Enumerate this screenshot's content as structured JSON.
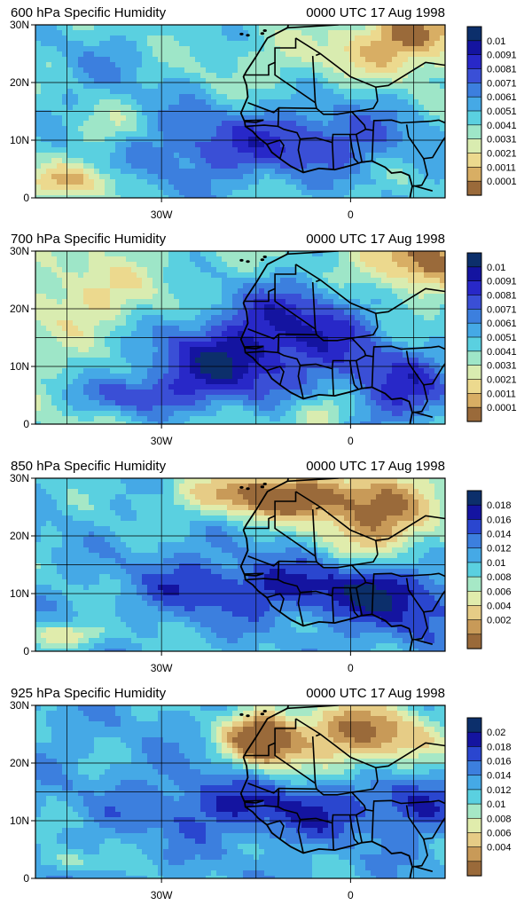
{
  "panels": [
    {
      "title": "600 hPa Specific Humidity",
      "time_label": "0000 UTC 17 Aug 1998",
      "y_tick_labels": [
        "30N",
        "20N",
        "10N",
        "0"
      ],
      "x_tick_labels": [
        "30W",
        "0"
      ],
      "colorbar_labels": [
        "0.01",
        "0.0091",
        "0.0081",
        "0.0071",
        "0.0061",
        "0.0051",
        "0.0041",
        "0.0031",
        "0.0021",
        "0.0011",
        "0.0001"
      ],
      "colorbar_colors": [
        "#0c2f6b",
        "#1414a0",
        "#2828c8",
        "#3a4fd6",
        "#3c7fde",
        "#45a9e6",
        "#5ad0e0",
        "#9ee6c8",
        "#d9ecb0",
        "#ecd98e",
        "#d8ae64",
        "#9a6a3a"
      ],
      "field": "humid-mid"
    },
    {
      "title": "700 hPa Specific Humidity",
      "time_label": "0000 UTC 17 Aug 1998",
      "y_tick_labels": [
        "30N",
        "20N",
        "10N",
        "0"
      ],
      "x_tick_labels": [
        "30W",
        "0"
      ],
      "colorbar_labels": [
        "0.01",
        "0.0091",
        "0.0081",
        "0.0071",
        "0.0061",
        "0.0051",
        "0.0041",
        "0.0031",
        "0.0021",
        "0.0011",
        "0.0001"
      ],
      "colorbar_colors": [
        "#0c2f6b",
        "#1414a0",
        "#2828c8",
        "#3a4fd6",
        "#3c7fde",
        "#45a9e6",
        "#5ad0e0",
        "#9ee6c8",
        "#d9ecb0",
        "#ecd98e",
        "#d8ae64",
        "#9a6a3a"
      ],
      "field": "humid-high"
    },
    {
      "title": "850 hPa Specific Humidity",
      "time_label": "0000 UTC 17 Aug 1998",
      "y_tick_labels": [
        "30N",
        "20N",
        "10N",
        "0"
      ],
      "x_tick_labels": [
        "30W",
        "0"
      ],
      "colorbar_labels": [
        "0.018",
        "0.016",
        "0.014",
        "0.012",
        "0.01",
        "0.008",
        "0.006",
        "0.004",
        "0.002"
      ],
      "colorbar_colors": [
        "#0c2f6b",
        "#1414a0",
        "#2a46cf",
        "#3c7fde",
        "#45a9e6",
        "#5ad0e0",
        "#a6e8c6",
        "#e0ecac",
        "#e6cc86",
        "#c89a58",
        "#9a6a3a"
      ],
      "field": "lowlevel"
    },
    {
      "title": "925 hPa Specific Humidity",
      "time_label": "0000 UTC 17 Aug 1998",
      "y_tick_labels": [
        "30N",
        "20N",
        "10N",
        "0"
      ],
      "x_tick_labels": [
        "30W",
        "0"
      ],
      "colorbar_labels": [
        "0.02",
        "0.018",
        "0.016",
        "0.014",
        "0.012",
        "0.01",
        "0.008",
        "0.006",
        "0.004"
      ],
      "colorbar_colors": [
        "#0c2f6b",
        "#1414a0",
        "#2a46cf",
        "#3c7fde",
        "#45a9e6",
        "#5ad0e0",
        "#a6e8c6",
        "#e0ecac",
        "#e6cc86",
        "#c89a58",
        "#9a6a3a"
      ],
      "field": "surface"
    }
  ]
}
